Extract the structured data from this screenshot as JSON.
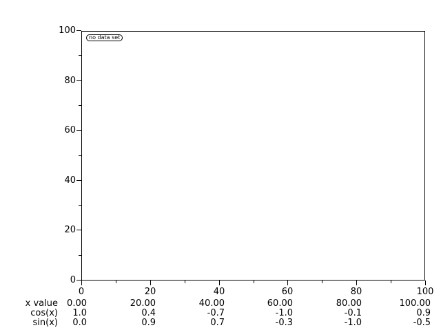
{
  "chart_data": {
    "type": "line",
    "title": "",
    "xlabel": "",
    "ylabel": "",
    "xlim": [
      0,
      100
    ],
    "ylim": [
      0,
      100
    ],
    "grid": false,
    "x_major_ticks": [
      0,
      20,
      40,
      60,
      80,
      100
    ],
    "x_tick_labels": [
      "0",
      "20",
      "40",
      "60",
      "80",
      "100"
    ],
    "x_minor_ticks": [
      10,
      30,
      50,
      70,
      90
    ],
    "y_major_ticks": [
      0,
      20,
      40,
      60,
      80,
      100
    ],
    "y_tick_labels": [
      "0",
      "20",
      "40",
      "60",
      "80",
      "100"
    ],
    "y_minor_ticks": [
      10,
      30,
      50,
      70,
      90
    ],
    "legend": [
      "no data set"
    ],
    "legend_position": "top-left",
    "series": [],
    "colors": {
      "background": "#ffffff",
      "axis": "#000000",
      "text": "#000000"
    },
    "value_table": {
      "columns_x": [
        0,
        20,
        40,
        60,
        80,
        100
      ],
      "rows": [
        {
          "label": "x value",
          "values": [
            "0.00",
            "20.00",
            "40.00",
            "60.00",
            "80.00",
            "100.00"
          ]
        },
        {
          "label": "cos(x)",
          "values": [
            "1.0",
            "0.4",
            "-0.7",
            "-1.0",
            "-0.1",
            "0.9"
          ]
        },
        {
          "label": "sin(x)",
          "values": [
            "0.0",
            "0.9",
            "0.7",
            "-0.3",
            "-1.0",
            "-0.5"
          ]
        }
      ]
    }
  }
}
